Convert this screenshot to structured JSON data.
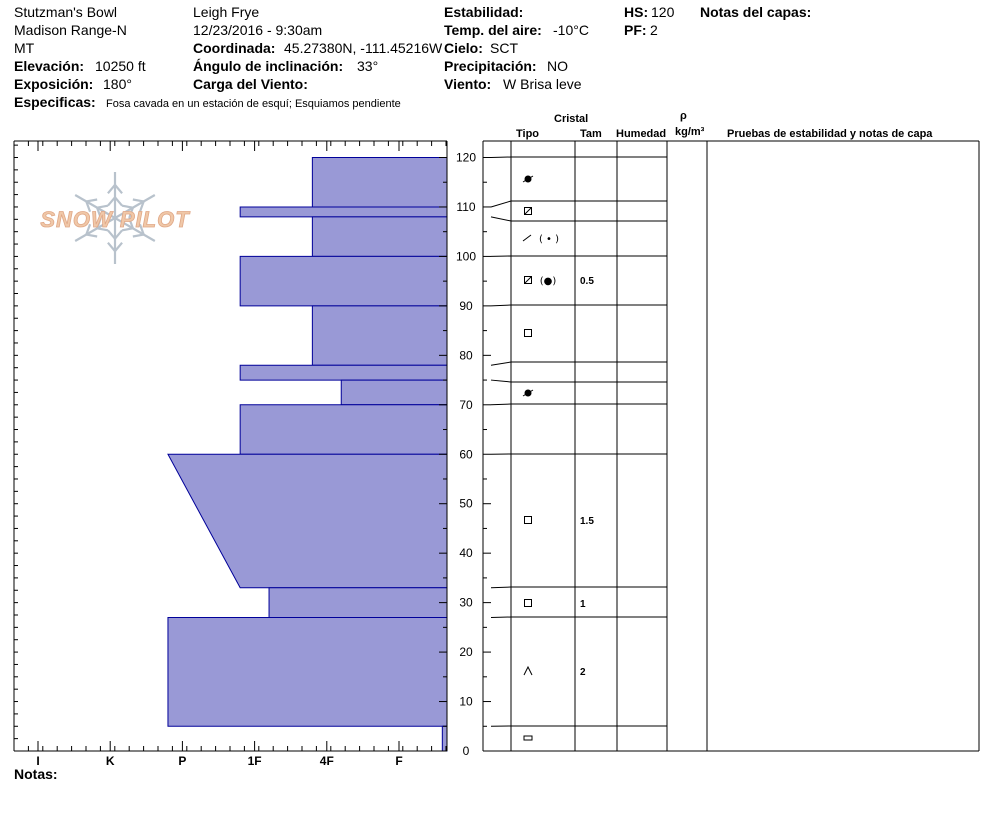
{
  "header": {
    "location": "Stutzman's Bowl",
    "range": "Madison Range-N",
    "state": "MT",
    "elevation_label": "Elevación:",
    "elevation_value": "10250 ft",
    "aspect_label": "Exposición:",
    "aspect_value": "180°",
    "specifics_label": "Especificas:",
    "specifics_value": "Fosa cavada en un estación de esquí; Esquiamos pendiente",
    "observer": "Leigh Frye",
    "datetime": "12/23/2016 - 9:30am",
    "coord_label": "Coordinada:",
    "coord_value": "45.27380N, -111.45216W",
    "slope_label": "Ángulo de inclinación:",
    "slope_value": "33°",
    "wind_load_label": "Carga del Viento:",
    "stability_label": "Estabilidad:",
    "air_temp_label": "Temp. del aire:",
    "air_temp_value": "-10°C",
    "sky_label": "Cielo:",
    "sky_value": "SCT",
    "precip_label": "Precipitación:",
    "precip_value": "NO",
    "wind_label": "Viento:",
    "wind_value": "W Brisa leve",
    "hs_label": "HS:",
    "hs_value": "120",
    "pf_label": "PF:",
    "pf_value": "2",
    "layer_notes_label": "Notas del capas:"
  },
  "columns": {
    "crystal": "Cristal",
    "type": "Tipo",
    "size": "Tam",
    "moisture": "Humedad",
    "rho": "ρ",
    "density": "kg/m³",
    "tests": "Pruebas de estabilidad y notas de capa"
  },
  "notes_label": "Notas:",
  "logo_text": "SNOW PILOT",
  "colors": {
    "profile_fill": "#9999D6",
    "profile_stroke": "#000099",
    "logo": "#F0C8A8",
    "snowflake": "#B8C2CC"
  },
  "chart_data": {
    "type": "bar",
    "orientation": "horizontal",
    "x_categories": [
      "I",
      "K",
      "P",
      "1F",
      "4F",
      "F"
    ],
    "y_ticks": [
      0,
      10,
      20,
      30,
      40,
      50,
      60,
      70,
      80,
      90,
      100,
      110,
      120
    ],
    "ylim": [
      0,
      120
    ],
    "xlim": [
      0,
      6
    ],
    "hardness_profile": [
      {
        "bottom": 110,
        "top": 120,
        "hardness": 3.8
      },
      {
        "bottom": 108,
        "top": 110,
        "hardness": 2.8
      },
      {
        "bottom": 100,
        "top": 108,
        "hardness": 3.8
      },
      {
        "bottom": 90,
        "top": 100,
        "hardness": 2.8
      },
      {
        "bottom": 78,
        "top": 90,
        "hardness": 3.8
      },
      {
        "bottom": 75,
        "top": 78,
        "hardness": 2.8
      },
      {
        "bottom": 70,
        "top": 75,
        "hardness": 4.2
      },
      {
        "bottom": 60,
        "top": 70,
        "hardness": 2.8
      },
      {
        "bottom": 33,
        "top": 60,
        "hardness_top": 1.8,
        "hardness_bottom": 2.8
      },
      {
        "bottom": 27,
        "top": 33,
        "hardness": 3.2
      },
      {
        "bottom": 5,
        "top": 27,
        "hardness": 1.8
      },
      {
        "bottom": 0,
        "top": 5,
        "hardness": 5.6
      }
    ],
    "layer_boundaries": [
      120,
      110,
      108,
      100,
      90,
      78,
      75,
      70,
      60,
      33,
      27,
      5,
      0
    ],
    "crystals": [
      {
        "depth": 115,
        "type": "rounded-faceted",
        "size": ""
      },
      {
        "depth": 109,
        "type": "faceted-rounded",
        "size": ""
      },
      {
        "depth": 103,
        "type": "decomposing-fragments",
        "size": ""
      },
      {
        "depth": 95,
        "type": "faceted-rounded-melt",
        "size": "0.5"
      },
      {
        "depth": 84,
        "type": "faceted",
        "size": ""
      },
      {
        "depth": 72,
        "type": "rounded-faceted",
        "size": ""
      },
      {
        "depth": 47,
        "type": "faceted",
        "size": "1.5"
      },
      {
        "depth": 30,
        "type": "faceted",
        "size": "1"
      },
      {
        "depth": 16,
        "type": "depth-hoar",
        "size": "2"
      },
      {
        "depth": 2.5,
        "type": "crust",
        "size": ""
      }
    ]
  }
}
